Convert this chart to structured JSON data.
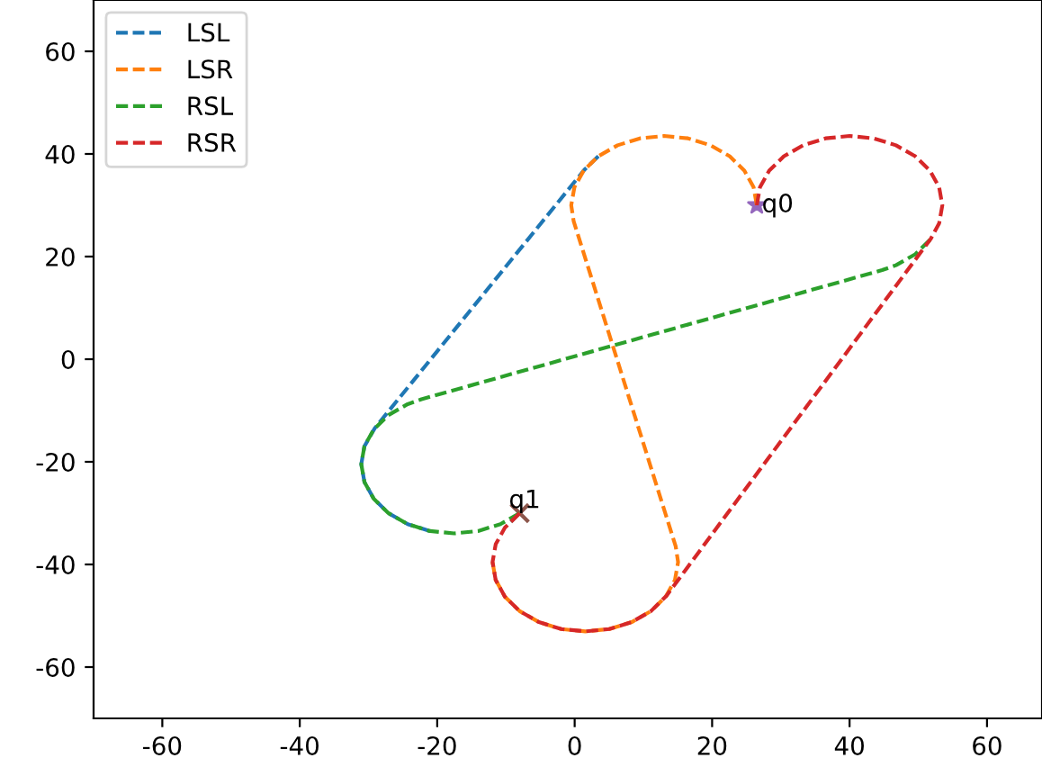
{
  "chart_data": {
    "type": "line",
    "line_style": "dashed",
    "marker": "none",
    "legend": "top left",
    "grid": false,
    "xlim": [
      -70,
      68
    ],
    "ylim": [
      -70,
      70
    ],
    "xticks": [
      -60,
      -40,
      -20,
      0,
      20,
      40,
      60
    ],
    "yticks": [
      -60,
      -40,
      -20,
      0,
      20,
      40,
      60
    ],
    "series": [
      {
        "name": "LSL",
        "color": "#1f77b4",
        "x": [
          3.45,
          1.46,
          -29.09,
          -30.59,
          -31.05,
          -30.59,
          -29.24,
          -27.1,
          -24.3,
          -21.04
        ],
        "values": [
          39.55,
          36.99,
          -13.46,
          -16.96,
          -20.45,
          -23.94,
          -27.2,
          -30.0,
          -32.14,
          -33.49
        ]
      },
      {
        "name": "LSR",
        "color": "#ff7f0e",
        "x": [
          26.5,
          26.04,
          24.69,
          22.55,
          19.75,
          16.49,
          13,
          9.51,
          6.25,
          3.45,
          1.31,
          -0.04,
          -0.5,
          -0.15,
          14.7,
          15.05,
          14.59,
          13.24,
          11.1,
          8.3,
          5.04,
          1.55,
          -1.94,
          -5.2,
          -8.0,
          -10.14,
          -11.49,
          -11.95
        ],
        "values": [
          30,
          33.49,
          36.75,
          39.55,
          41.69,
          43.04,
          43.5,
          43.04,
          41.69,
          39.55,
          36.75,
          33.49,
          30,
          26.92,
          -36.47,
          -39.55,
          -43.04,
          -46.3,
          -49.1,
          -51.24,
          -52.59,
          -53.05,
          -52.59,
          -51.24,
          -49.1,
          -46.3,
          -43.04,
          -39.55
        ]
      },
      {
        "name": "RSL",
        "color": "#2ca02c",
        "x": [
          51.69,
          49.55,
          46.75,
          44.74,
          -22.29,
          -24.3,
          -27.1,
          -29.24,
          -30.59,
          -31.05,
          -30.59,
          -29.24,
          -27.1,
          -24.3,
          -21.04,
          -17.55,
          -14.06,
          -10.8,
          -8.0
        ],
        "values": [
          23.25,
          20.45,
          18.31,
          17.36,
          -7.81,
          -8.76,
          -10.9,
          -13.7,
          -16.96,
          -20.45,
          -23.94,
          -27.2,
          -30.0,
          -32.14,
          -33.49,
          -33.95,
          -33.49,
          -32.14,
          -30.0
        ]
      },
      {
        "name": "RSR",
        "color": "#d62728",
        "x": [
          26.5,
          26.96,
          28.31,
          30.45,
          33.25,
          36.51,
          40,
          43.49,
          46.75,
          49.55,
          51.69,
          53.04,
          53.5,
          53.04,
          51.82,
          13.37,
          11.1,
          8.3,
          5.04,
          1.55,
          -1.94,
          -5.2,
          -8.0,
          -10.14,
          -11.49,
          -11.95,
          -11.49,
          -10.14,
          -8.0
        ],
        "values": [
          30,
          33.49,
          36.75,
          39.55,
          41.69,
          43.04,
          43.5,
          43.04,
          41.69,
          39.55,
          36.75,
          33.49,
          30,
          26.51,
          23.47,
          -46.08,
          -49.1,
          -51.24,
          -52.59,
          -53.05,
          -52.59,
          -51.24,
          -49.1,
          -46.3,
          -43.04,
          -39.55,
          -36.06,
          -32.8,
          -30.0
        ]
      },
      {
        "type": "scatter",
        "marker": "star",
        "color": "#9467bd",
        "x": [
          26.5
        ],
        "values": [
          30
        ]
      },
      {
        "type": "scatter",
        "marker": "cross",
        "color": "#8c564b",
        "x": [
          -8
        ],
        "values": [
          -30
        ]
      }
    ],
    "annotations": [
      {
        "text": "q0",
        "x": 26.5,
        "y": 30
      },
      {
        "text": "q1",
        "x": -8,
        "y": -30
      }
    ]
  }
}
